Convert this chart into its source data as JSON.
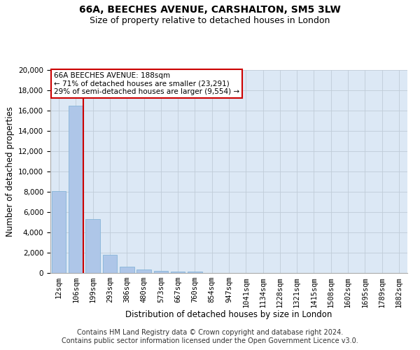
{
  "title": "66A, BEECHES AVENUE, CARSHALTON, SM5 3LW",
  "subtitle": "Size of property relative to detached houses in London",
  "xlabel": "Distribution of detached houses by size in London",
  "ylabel": "Number of detached properties",
  "categories": [
    "12sqm",
    "106sqm",
    "199sqm",
    "293sqm",
    "386sqm",
    "480sqm",
    "573sqm",
    "667sqm",
    "760sqm",
    "854sqm",
    "947sqm",
    "1041sqm",
    "1134sqm",
    "1228sqm",
    "1321sqm",
    "1415sqm",
    "1508sqm",
    "1602sqm",
    "1695sqm",
    "1789sqm",
    "1882sqm"
  ],
  "bar_heights": [
    8100,
    16500,
    5300,
    1800,
    650,
    350,
    180,
    150,
    120,
    0,
    0,
    0,
    0,
    0,
    0,
    0,
    0,
    0,
    0,
    0,
    0
  ],
  "bar_color": "#aec6e8",
  "bar_edge_color": "#7aafd4",
  "vline_color": "#cc0000",
  "annotation_text": "66A BEECHES AVENUE: 188sqm\n← 71% of detached houses are smaller (23,291)\n29% of semi-detached houses are larger (9,554) →",
  "annotation_box_color": "#cc0000",
  "ylim": [
    0,
    20000
  ],
  "yticks": [
    0,
    2000,
    4000,
    6000,
    8000,
    10000,
    12000,
    14000,
    16000,
    18000,
    20000
  ],
  "footer_line1": "Contains HM Land Registry data © Crown copyright and database right 2024.",
  "footer_line2": "Contains public sector information licensed under the Open Government Licence v3.0.",
  "background_color": "#ffffff",
  "plot_bg_color": "#dce8f5",
  "grid_color": "#c0ccd8",
  "title_fontsize": 10,
  "subtitle_fontsize": 9,
  "axis_label_fontsize": 8.5,
  "tick_fontsize": 7.5,
  "footer_fontsize": 7,
  "annot_fontsize": 7.5
}
